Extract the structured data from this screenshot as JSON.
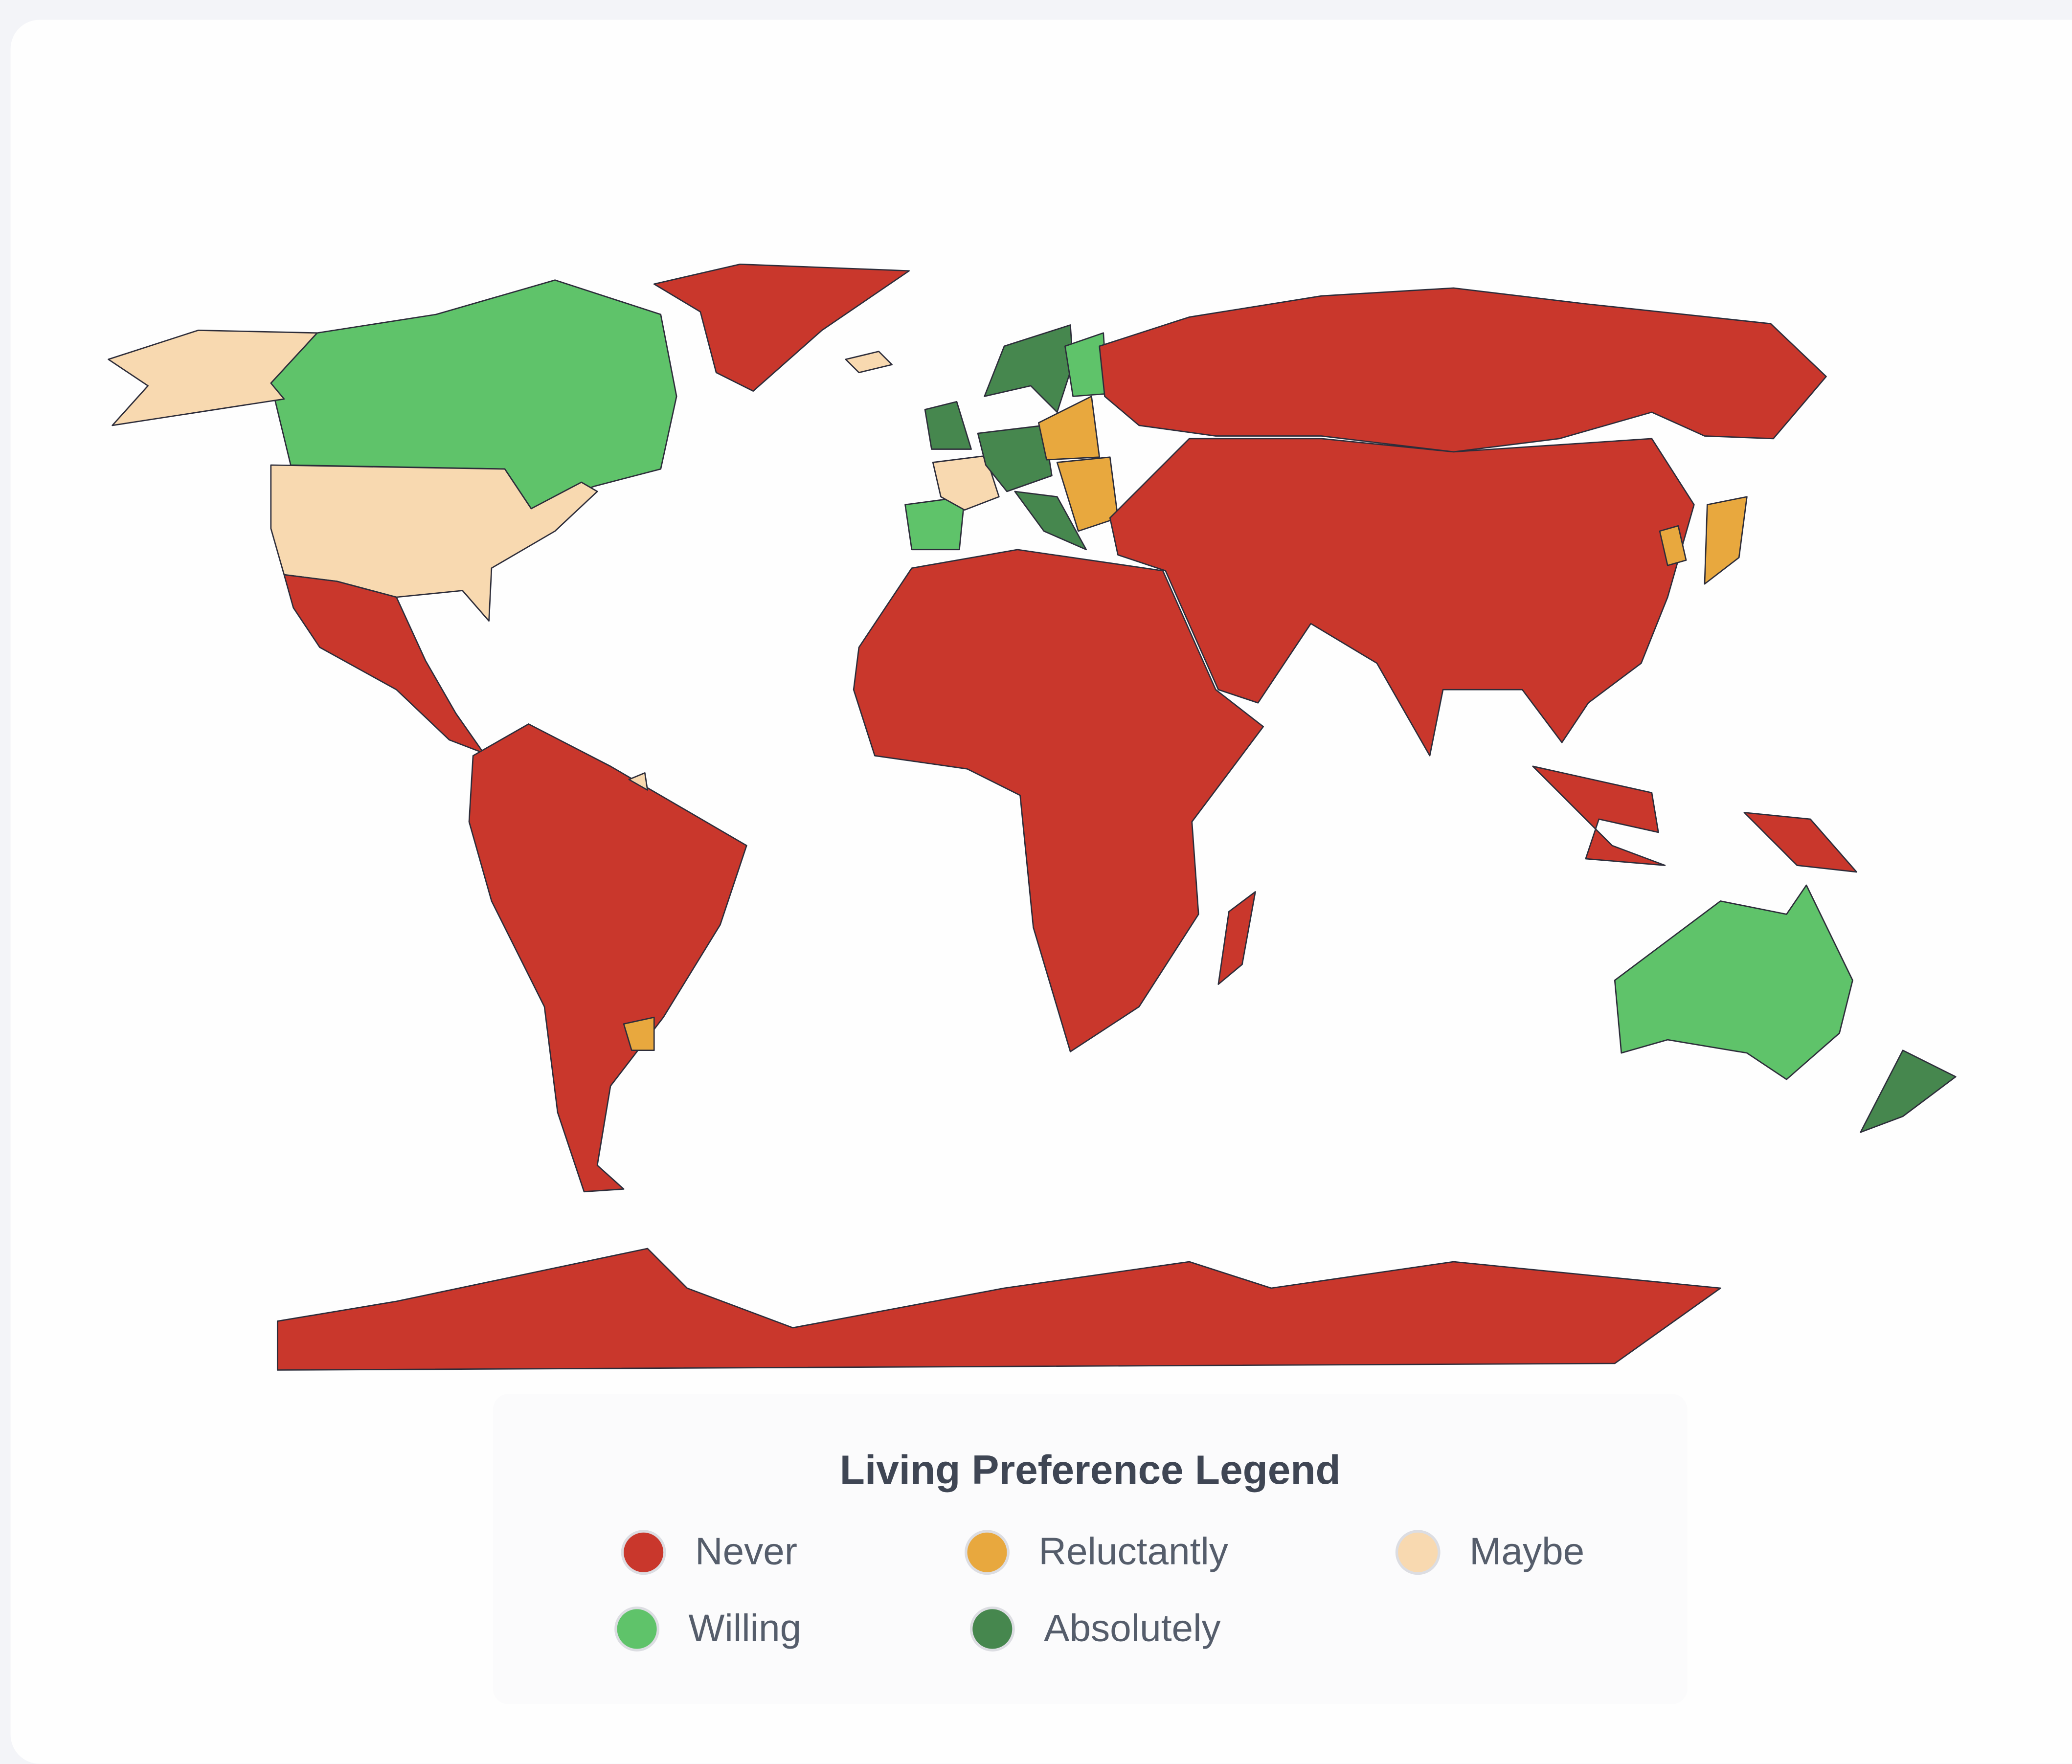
{
  "legend": {
    "title": "Living Preference Legend",
    "items": [
      {
        "key": "never",
        "label": "Never",
        "color": "#C9372C"
      },
      {
        "key": "reluctantly",
        "label": "Reluctantly",
        "color": "#E8A83E"
      },
      {
        "key": "maybe",
        "label": "Maybe",
        "color": "#F8D9B0"
      },
      {
        "key": "willing",
        "label": "Willing",
        "color": "#5FC36A"
      },
      {
        "key": "absolutely",
        "label": "Absolutely",
        "color": "#46874E"
      }
    ]
  },
  "regions": [
    {
      "id": "canada",
      "category": "willing"
    },
    {
      "id": "alaska",
      "category": "maybe"
    },
    {
      "id": "united-states",
      "category": "maybe"
    },
    {
      "id": "greenland",
      "category": "never"
    },
    {
      "id": "iceland",
      "category": "maybe"
    },
    {
      "id": "mexico-central-america",
      "category": "never"
    },
    {
      "id": "south-america",
      "category": "never"
    },
    {
      "id": "uruguay",
      "category": "reluctantly"
    },
    {
      "id": "french-guiana",
      "category": "maybe"
    },
    {
      "id": "spain",
      "category": "willing"
    },
    {
      "id": "france",
      "category": "maybe"
    },
    {
      "id": "united-kingdom",
      "category": "absolutely"
    },
    {
      "id": "central-europe",
      "category": "absolutely"
    },
    {
      "id": "norway-sweden",
      "category": "absolutely"
    },
    {
      "id": "finland",
      "category": "willing"
    },
    {
      "id": "poland-baltics",
      "category": "reluctantly"
    },
    {
      "id": "italy",
      "category": "absolutely"
    },
    {
      "id": "balkans",
      "category": "reluctantly"
    },
    {
      "id": "russia",
      "category": "never"
    },
    {
      "id": "asia",
      "category": "never"
    },
    {
      "id": "japan",
      "category": "reluctantly"
    },
    {
      "id": "korea",
      "category": "reluctantly"
    },
    {
      "id": "africa",
      "category": "never"
    },
    {
      "id": "madagascar",
      "category": "never"
    },
    {
      "id": "indonesia",
      "category": "never"
    },
    {
      "id": "new-guinea",
      "category": "never"
    },
    {
      "id": "australia",
      "category": "willing"
    },
    {
      "id": "new-zealand",
      "category": "absolutely"
    },
    {
      "id": "antarctica",
      "category": "never"
    }
  ]
}
